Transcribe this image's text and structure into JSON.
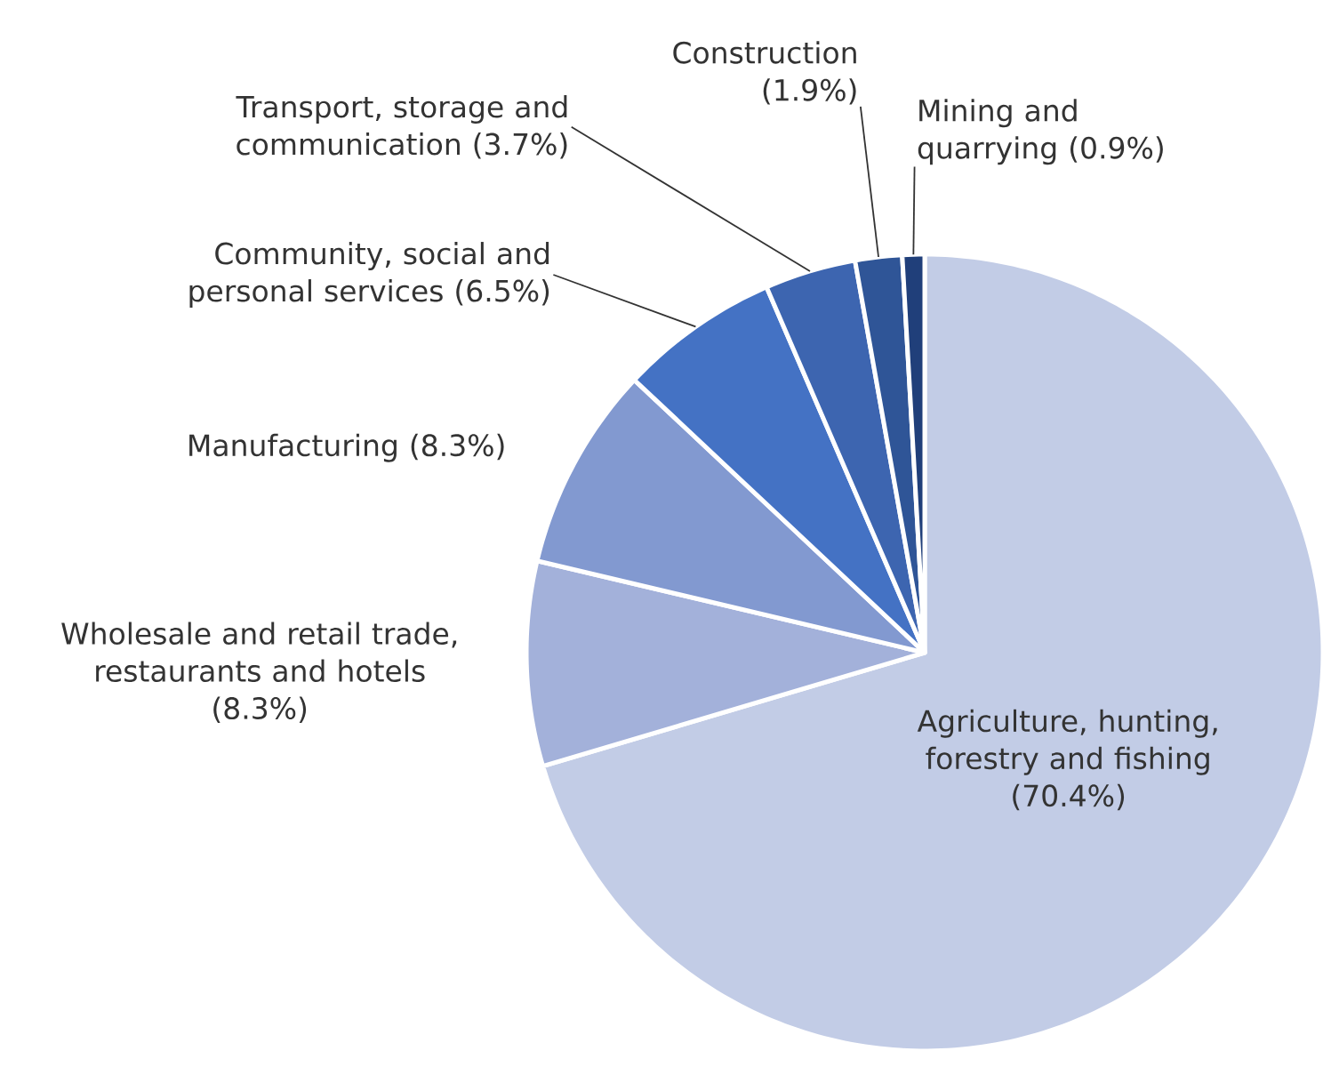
{
  "chart_data": {
    "type": "pie",
    "categories": [
      "Agriculture, hunting, forestry and fishing",
      "Wholesale and retail trade, restaurants and hotels",
      "Manufacturing",
      "Community, social and personal services",
      "Transport, storage and communication",
      "Construction",
      "Mining and quarrying"
    ],
    "values": [
      70.4,
      8.3,
      8.3,
      6.5,
      3.7,
      1.9,
      0.9
    ],
    "value_labels": [
      "(70.4%)",
      "(8.3%)",
      "(8.3%)",
      "(6.5%)",
      "(3.7%)",
      "(1.9%)",
      "(0.9%)"
    ],
    "colors": [
      "#c2cce6",
      "#a3b1da",
      "#8299d0",
      "#4472c4",
      "#3d65b0",
      "#2f5597",
      "#203f7a"
    ]
  }
}
